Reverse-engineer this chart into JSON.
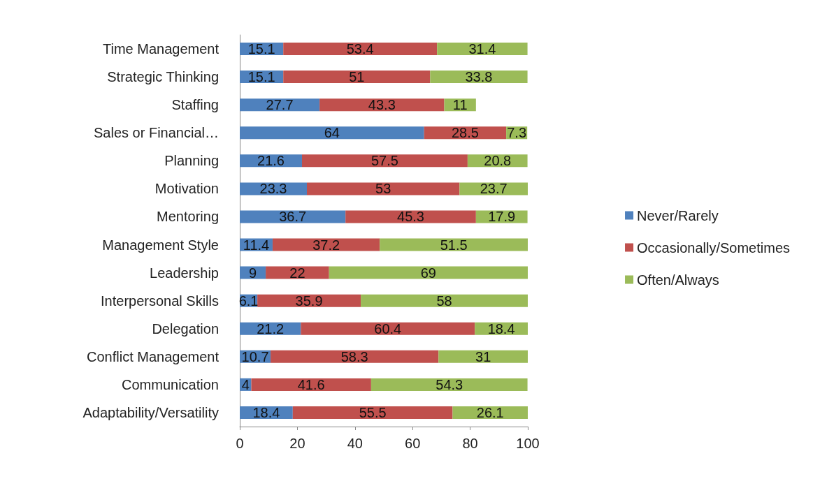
{
  "chart_data": {
    "type": "bar",
    "orientation": "horizontal",
    "stacked": true,
    "data_labels": true,
    "legend": "right",
    "grid": false,
    "categories": [
      "Time Management",
      "Strategic Thinking",
      "Staffing",
      "Sales or Financial…",
      "Planning",
      "Motivation",
      "Mentoring",
      "Management Style",
      "Leadership",
      "Interpersonal Skills",
      "Delegation",
      "Conflict Management",
      "Communication",
      "Adaptability/Versatility"
    ],
    "series": [
      {
        "name": "Never/Rarely",
        "color": "#4f81bd",
        "values": [
          15.1,
          15.1,
          27.7,
          64,
          21.6,
          23.3,
          36.7,
          11.4,
          9,
          6.1,
          21.2,
          10.7,
          4,
          18.4
        ]
      },
      {
        "name": "Occasionally/Sometimes",
        "color": "#c0504d",
        "values": [
          53.4,
          51,
          43.3,
          28.5,
          57.5,
          53,
          45.3,
          37.2,
          22,
          35.9,
          60.4,
          58.3,
          41.6,
          55.5
        ]
      },
      {
        "name": "Often/Always",
        "color": "#9bbb59",
        "values": [
          31.4,
          33.8,
          11,
          7.3,
          20.8,
          23.7,
          17.9,
          51.5,
          69,
          58,
          18.4,
          31,
          54.3,
          26.1
        ]
      }
    ],
    "xlim": [
      0,
      100
    ],
    "xticks": [
      0,
      20,
      40,
      60,
      80,
      100
    ]
  }
}
